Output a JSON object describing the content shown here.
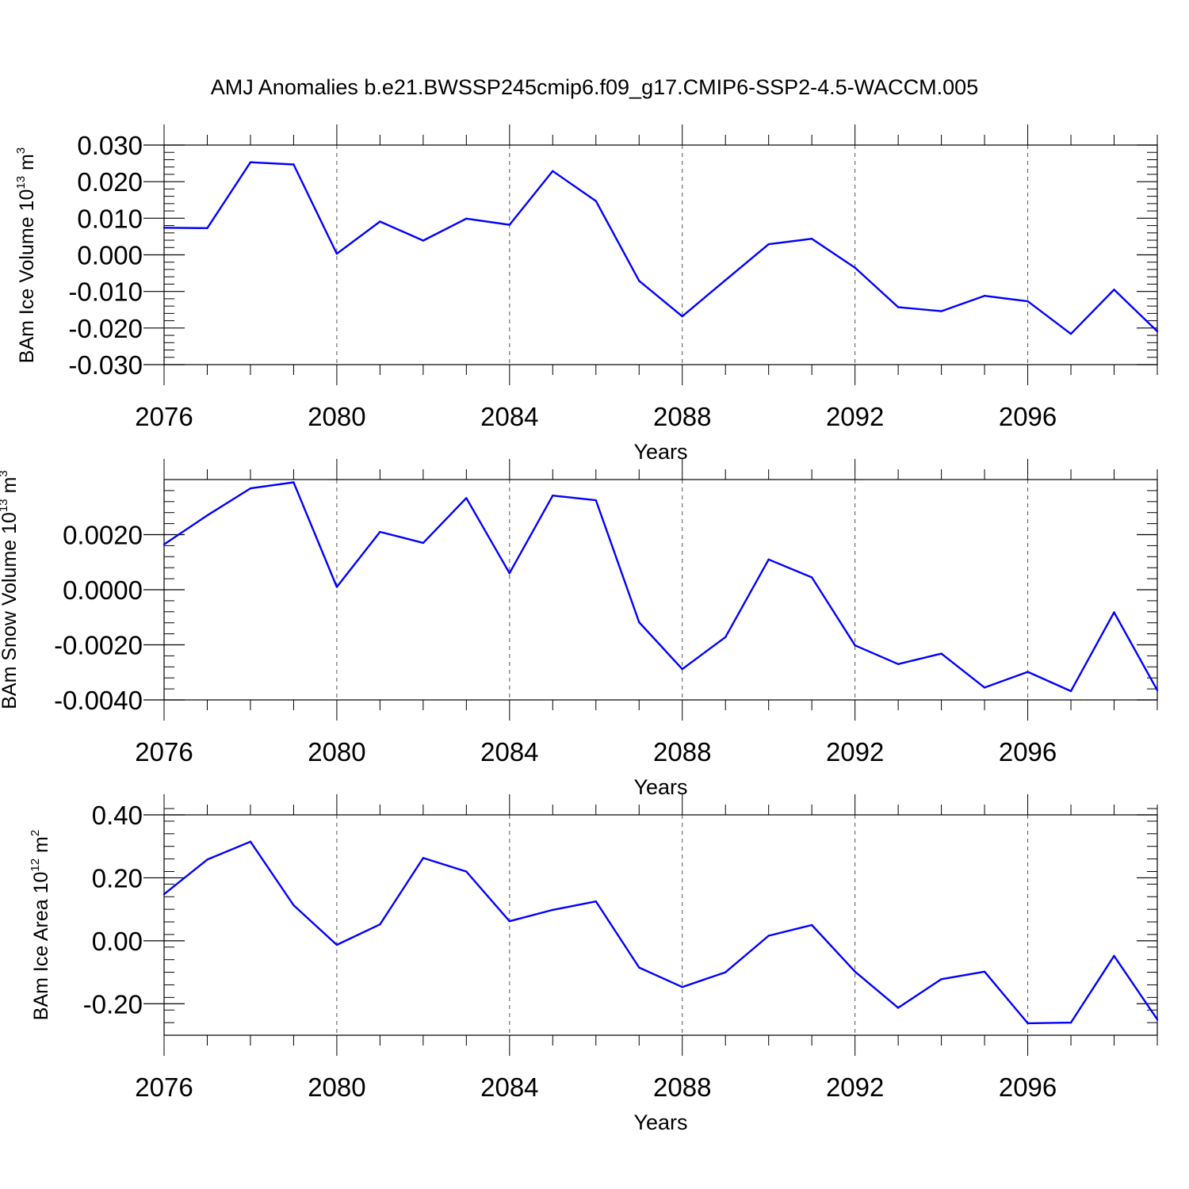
{
  "title": "AMJ Anomalies b.e21.BWSSP245cmip6.f09_g17.CMIP6-SSP2-4.5-WACCM.005",
  "colors": {
    "line": "#0000ff",
    "axis": "#000000",
    "grid": "#555555"
  },
  "chart_data": [
    {
      "type": "line",
      "ylabel": "BAm Ice Volume 10",
      "ylabel_exp": "13",
      "ylabel_unit": " m",
      "ylabel_unit_exp": "3",
      "xlabel": "Years",
      "xlim": [
        2076,
        2099
      ],
      "ylim": [
        -0.03,
        0.03
      ],
      "x_ticks": [
        2076,
        2080,
        2084,
        2088,
        2092,
        2096
      ],
      "x_tick_labels": [
        "2076",
        "2080",
        "2084",
        "2088",
        "2092",
        "2096"
      ],
      "y_ticks": [
        -0.03,
        -0.02,
        -0.01,
        0.0,
        0.01,
        0.02,
        0.03
      ],
      "y_tick_labels": [
        "-0.030",
        "-0.020",
        "-0.010",
        "0.000",
        "0.010",
        "0.020",
        "0.030"
      ],
      "x_minor_step": 1,
      "y_minor_step": 0.002,
      "grid": "vertical dashed at major x ticks",
      "x": [
        2076,
        2077,
        2078,
        2079,
        2080,
        2081,
        2082,
        2083,
        2084,
        2085,
        2086,
        2087,
        2088,
        2089,
        2090,
        2091,
        2092,
        2093,
        2094,
        2095,
        2096,
        2097,
        2098,
        2099
      ],
      "values": [
        0.0074,
        0.0073,
        0.0253,
        0.0247,
        0.0003,
        0.0091,
        0.0039,
        0.0099,
        0.0082,
        0.0229,
        0.0147,
        -0.0071,
        -0.0168,
        -0.0069,
        0.0029,
        0.0044,
        -0.0035,
        -0.0143,
        -0.0154,
        -0.0112,
        -0.0127,
        -0.0216,
        -0.0095,
        -0.0209
      ]
    },
    {
      "type": "line",
      "ylabel": "BAm Snow Volume 10",
      "ylabel_exp": "13",
      "ylabel_unit": " m",
      "ylabel_unit_exp": "3",
      "xlabel": "Years",
      "xlim": [
        2076,
        2099
      ],
      "ylim": [
        -0.004,
        0.004
      ],
      "x_ticks": [
        2076,
        2080,
        2084,
        2088,
        2092,
        2096
      ],
      "x_tick_labels": [
        "2076",
        "2080",
        "2084",
        "2088",
        "2092",
        "2096"
      ],
      "y_ticks": [
        -0.004,
        -0.002,
        0.0,
        0.002
      ],
      "y_tick_labels": [
        "-0.0040",
        "-0.0020",
        "0.0000",
        "0.0020"
      ],
      "x_minor_step": 1,
      "y_minor_step": 0.0004,
      "grid": "vertical dashed at major x ticks",
      "x": [
        2076,
        2077,
        2078,
        2079,
        2080,
        2081,
        2082,
        2083,
        2084,
        2085,
        2086,
        2087,
        2088,
        2089,
        2090,
        2091,
        2092,
        2093,
        2094,
        2095,
        2096,
        2097,
        2098,
        2099
      ],
      "values": [
        0.00165,
        0.0027,
        0.00368,
        0.0039,
        0.0001,
        0.0021,
        0.0017,
        0.00333,
        0.0006,
        0.00342,
        0.00325,
        -0.00118,
        -0.00288,
        -0.00172,
        0.0011,
        0.00045,
        -0.00202,
        -0.0027,
        -0.00232,
        -0.00355,
        -0.00298,
        -0.00368,
        -0.00082,
        -0.00365
      ]
    },
    {
      "type": "line",
      "ylabel": "BAm Ice Area 10",
      "ylabel_exp": "12",
      "ylabel_unit": " m",
      "ylabel_unit_exp": "2",
      "xlabel": "Years",
      "xlim": [
        2076,
        2099
      ],
      "ylim": [
        -0.3,
        0.4
      ],
      "x_ticks": [
        2076,
        2080,
        2084,
        2088,
        2092,
        2096
      ],
      "x_tick_labels": [
        "2076",
        "2080",
        "2084",
        "2088",
        "2092",
        "2096"
      ],
      "y_ticks": [
        -0.2,
        0.0,
        0.2,
        0.4
      ],
      "y_tick_labels": [
        "-0.20",
        "0.00",
        "0.20",
        "0.40"
      ],
      "x_minor_step": 1,
      "y_minor_step": 0.04,
      "grid": "vertical dashed at major x ticks",
      "x": [
        2076,
        2077,
        2078,
        2079,
        2080,
        2081,
        2082,
        2083,
        2084,
        2085,
        2086,
        2087,
        2088,
        2089,
        2090,
        2091,
        2092,
        2093,
        2094,
        2095,
        2096,
        2097,
        2098,
        2099
      ],
      "values": [
        0.148,
        0.258,
        0.315,
        0.113,
        -0.013,
        0.052,
        0.263,
        0.22,
        0.062,
        0.098,
        0.125,
        -0.085,
        -0.147,
        -0.1,
        0.016,
        0.05,
        -0.098,
        -0.213,
        -0.122,
        -0.098,
        -0.262,
        -0.26,
        -0.048,
        -0.25
      ]
    }
  ]
}
